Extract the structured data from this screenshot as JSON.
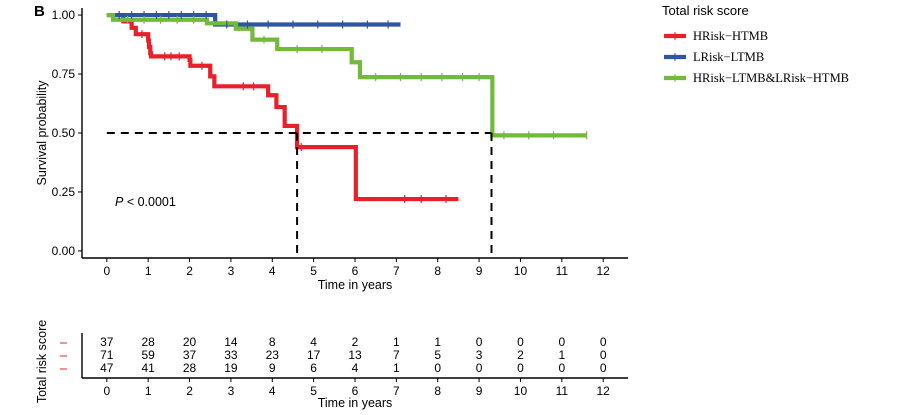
{
  "panel_label": "B",
  "chart_data": [
    {
      "type": "line",
      "subtype": "kaplan-meier",
      "title": "",
      "xlabel": "Time in years",
      "ylabel": "Survival probability",
      "xlim": [
        -0.6,
        12.6
      ],
      "ylim": [
        -0.03,
        1.03
      ],
      "x_ticks": [
        "0",
        "1",
        "2",
        "3",
        "4",
        "5",
        "6",
        "7",
        "8",
        "9",
        "10",
        "11",
        "12"
      ],
      "y_ticks": [
        "0.00",
        "0.25",
        "0.50",
        "0.75",
        "1.00"
      ],
      "legend_title": "Total risk score",
      "legend_position": "right",
      "annotation": {
        "p_label": "P",
        "p_text": " < 0.0001"
      },
      "median_line": {
        "y": 0.5,
        "x_drops": [
          4.6,
          9.3
        ]
      },
      "series": [
        {
          "name": "HRisk−HTMB",
          "color": "#e8202a",
          "steps": [
            [
              0,
              1.0
            ],
            [
              0.4,
              0.973
            ],
            [
              0.6,
              0.946
            ],
            [
              0.7,
              0.919
            ],
            [
              1.0,
              0.892
            ],
            [
              1.02,
              0.865
            ],
            [
              1.05,
              0.838
            ],
            [
              1.07,
              0.825
            ],
            [
              2.0,
              0.81
            ],
            [
              2.02,
              0.785
            ],
            [
              2.5,
              0.74
            ],
            [
              2.6,
              0.698
            ],
            [
              3.9,
              0.66
            ],
            [
              4.1,
              0.61
            ],
            [
              4.3,
              0.53
            ],
            [
              4.6,
              0.44
            ],
            [
              6.0,
              0.44
            ],
            [
              6.02,
              0.22
            ],
            [
              8.5,
              0.22
            ]
          ],
          "censor": [
            0.85,
            1.4,
            1.55,
            1.75,
            2.3,
            3.3,
            3.55,
            4.7,
            7.2,
            7.6,
            8.2
          ]
        },
        {
          "name": "LRisk−LTMB",
          "color": "#2e54a4",
          "steps": [
            [
              0,
              1.0
            ],
            [
              2.6,
              1.0
            ],
            [
              2.62,
              0.96
            ],
            [
              7.1,
              0.96
            ]
          ],
          "censor": [
            0.3,
            0.6,
            0.9,
            1.2,
            1.5,
            1.8,
            2.1,
            2.4,
            2.9,
            3.4,
            3.9,
            4.5,
            5.1,
            5.7,
            6.3,
            6.8
          ]
        },
        {
          "name": "HRisk−LTMB&LRisk−HTMB",
          "color": "#72bb3a",
          "steps": [
            [
              0,
              1.0
            ],
            [
              0.15,
              0.98
            ],
            [
              2.4,
              0.98
            ],
            [
              2.42,
              0.965
            ],
            [
              3.1,
              0.965
            ],
            [
              3.12,
              0.942
            ],
            [
              3.5,
              0.942
            ],
            [
              3.52,
              0.896
            ],
            [
              4.1,
              0.896
            ],
            [
              4.12,
              0.856
            ],
            [
              5.9,
              0.856
            ],
            [
              5.92,
              0.8
            ],
            [
              6.1,
              0.8
            ],
            [
              6.12,
              0.737
            ],
            [
              9.3,
              0.737
            ],
            [
              9.32,
              0.49
            ],
            [
              11.6,
              0.49
            ]
          ],
          "censor": [
            0.5,
            0.9,
            1.3,
            1.7,
            2.1,
            3.8,
            4.6,
            5.2,
            6.5,
            7.1,
            7.6,
            8.1,
            8.6,
            9.0,
            9.6,
            10.2,
            10.8,
            11.6
          ]
        }
      ]
    },
    {
      "type": "table",
      "title": "",
      "ylabel": "Total risk score",
      "xlabel": "Time in years",
      "x_ticks": [
        "0",
        "1",
        "2",
        "3",
        "4",
        "5",
        "6",
        "7",
        "8",
        "9",
        "10",
        "11",
        "12"
      ],
      "rows": [
        {
          "color": "#e8202a",
          "values": [
            "37",
            "28",
            "20",
            "14",
            "8",
            "4",
            "2",
            "1",
            "1",
            "0",
            "0",
            "0",
            "0"
          ]
        },
        {
          "color": "#2e54a4",
          "values": [
            "71",
            "59",
            "37",
            "33",
            "23",
            "17",
            "13",
            "7",
            "5",
            "3",
            "2",
            "1",
            "0"
          ]
        },
        {
          "color": "#72bb3a",
          "values": [
            "47",
            "41",
            "28",
            "19",
            "9",
            "6",
            "4",
            "1",
            "0",
            "0",
            "0",
            "0",
            "0"
          ]
        }
      ],
      "marker_color": "#e8202a"
    }
  ]
}
